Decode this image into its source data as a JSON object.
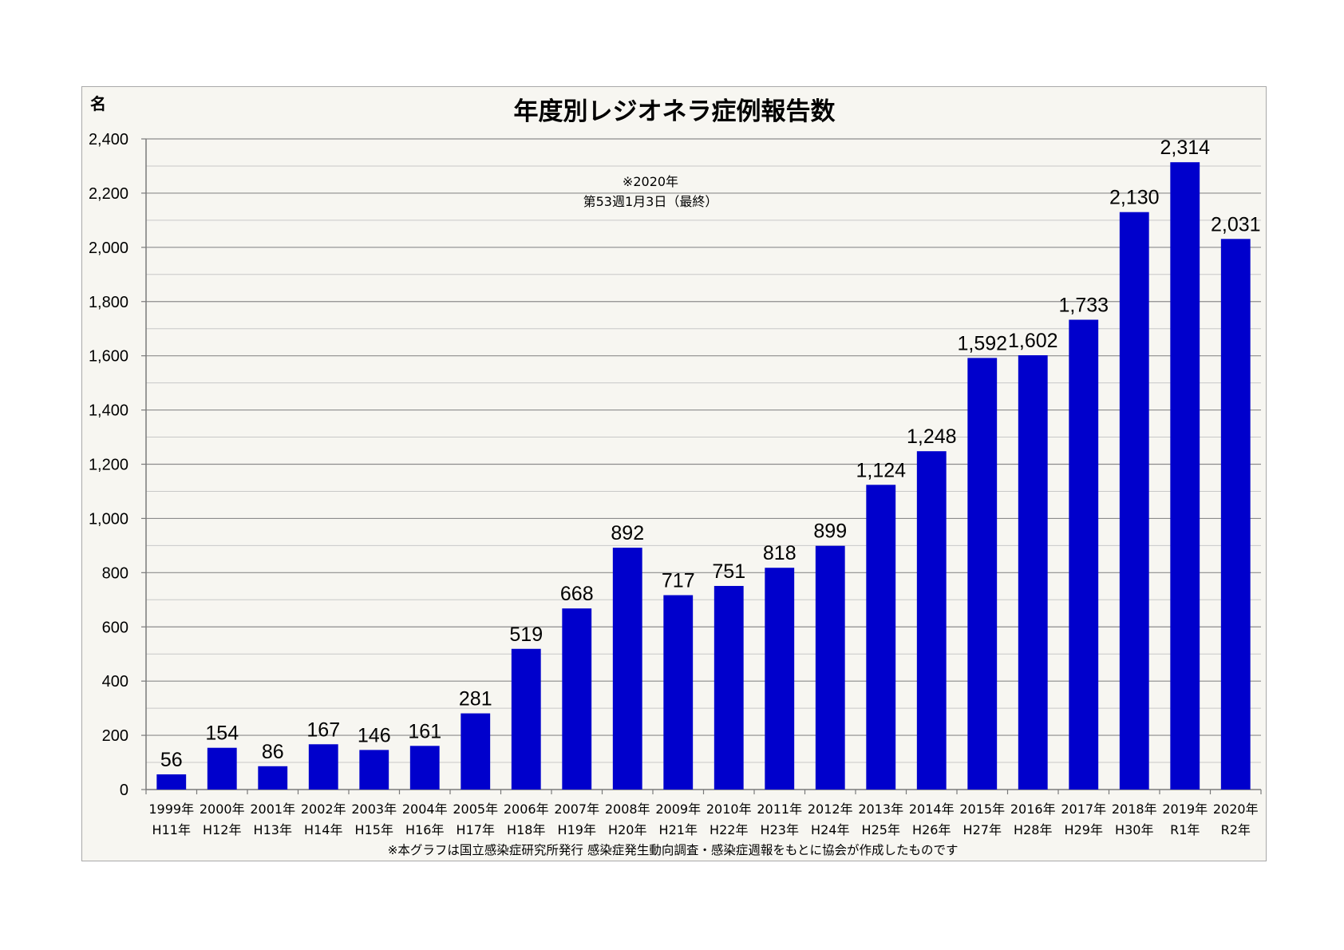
{
  "chart_data": {
    "type": "bar",
    "title": "年度別レジオネラ症例報告数",
    "ylabel": "名",
    "xlabel": "",
    "ylim": [
      0,
      2400
    ],
    "ytick_step": 200,
    "yticks": [
      "0",
      "200",
      "400",
      "600",
      "800",
      "1,000",
      "1,200",
      "1,400",
      "1,600",
      "1,800",
      "2,000",
      "2,200",
      "2,400"
    ],
    "grid": true,
    "minor_grid_step": 100,
    "categories": [
      {
        "year": "1999年",
        "era": "H11年"
      },
      {
        "year": "2000年",
        "era": "H12年"
      },
      {
        "year": "2001年",
        "era": "H13年"
      },
      {
        "year": "2002年",
        "era": "H14年"
      },
      {
        "year": "2003年",
        "era": "H15年"
      },
      {
        "year": "2004年",
        "era": "H16年"
      },
      {
        "year": "2005年",
        "era": "H17年"
      },
      {
        "year": "2006年",
        "era": "H18年"
      },
      {
        "year": "2007年",
        "era": "H19年"
      },
      {
        "year": "2008年",
        "era": "H20年"
      },
      {
        "year": "2009年",
        "era": "H21年"
      },
      {
        "year": "2010年",
        "era": "H22年"
      },
      {
        "year": "2011年",
        "era": "H23年"
      },
      {
        "year": "2012年",
        "era": "H24年"
      },
      {
        "year": "2013年",
        "era": "H25年"
      },
      {
        "year": "2014年",
        "era": "H26年"
      },
      {
        "year": "2015年",
        "era": "H27年"
      },
      {
        "year": "2016年",
        "era": "H28年"
      },
      {
        "year": "2017年",
        "era": "H29年"
      },
      {
        "year": "2018年",
        "era": "H30年"
      },
      {
        "year": "2019年",
        "era": "R1年"
      },
      {
        "year": "2020年",
        "era": "R2年"
      }
    ],
    "values": [
      56,
      154,
      86,
      167,
      146,
      161,
      281,
      519,
      668,
      892,
      717,
      751,
      818,
      899,
      1124,
      1248,
      1592,
      1602,
      1733,
      2130,
      2314,
      2031
    ],
    "labels": [
      "56",
      "154",
      "86",
      "167",
      "146",
      "161",
      "281",
      "519",
      "668",
      "892",
      "717",
      "751",
      "818",
      "899",
      "1,124",
      "1,248",
      "1,592",
      "1,602",
      "1,733",
      "2,130",
      "2,314",
      "2,031"
    ],
    "highlight_index": 21,
    "annotation": [
      "※2020年",
      "第53週1月3日（最終）"
    ],
    "source_note": "※本グラフは国立感染症研究所発行 感染症発生動向調査・感染症週報をもとに協会が作成したものです",
    "colors": {
      "bar": "#0000cc",
      "label": "#000000",
      "highlight_label": "#ff0000",
      "background": "#f7f6f1",
      "major_grid": "#8c8c8c",
      "minor_grid": "#c8c8c8"
    }
  }
}
